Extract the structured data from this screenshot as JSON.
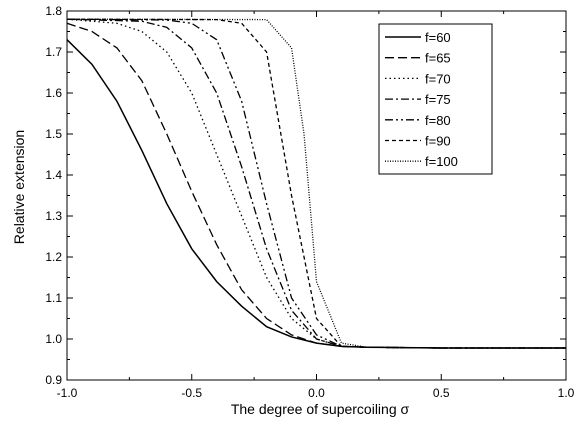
{
  "chart_data": {
    "type": "line",
    "xlabel": "The degree of supercoiling σ",
    "ylabel": "Relative extension",
    "xlim": [
      -1.0,
      1.0
    ],
    "ylim": [
      0.9,
      1.8
    ],
    "xticks": [
      -1.0,
      -0.5,
      0.0,
      0.5,
      1.0
    ],
    "xtick_labels": [
      "-1.0",
      "-0.5",
      "0.0",
      "0.5",
      "1.0"
    ],
    "yticks": [
      0.9,
      1.0,
      1.1,
      1.2,
      1.3,
      1.4,
      1.5,
      1.6,
      1.7,
      1.8
    ],
    "ytick_labels": [
      "0.9",
      "1.0",
      "1.1",
      "1.2",
      "1.3",
      "1.4",
      "1.5",
      "1.6",
      "1.7",
      "1.8"
    ],
    "grid": false,
    "legend_position": "top-right",
    "series": [
      {
        "name": "f=60",
        "dash": "solid",
        "x": [
          -1.0,
          -0.9,
          -0.8,
          -0.7,
          -0.6,
          -0.5,
          -0.4,
          -0.3,
          -0.2,
          -0.1,
          0.0,
          0.1,
          0.2,
          0.5,
          1.0
        ],
        "y": [
          1.73,
          1.67,
          1.58,
          1.46,
          1.33,
          1.22,
          1.14,
          1.08,
          1.03,
          1.005,
          0.99,
          0.982,
          0.98,
          0.978,
          0.978
        ]
      },
      {
        "name": "f=65",
        "dash": "dash",
        "x": [
          -1.0,
          -0.9,
          -0.8,
          -0.7,
          -0.6,
          -0.5,
          -0.4,
          -0.3,
          -0.2,
          -0.1,
          0.0,
          0.1,
          0.2,
          0.5,
          1.0
        ],
        "y": [
          1.77,
          1.75,
          1.71,
          1.63,
          1.5,
          1.36,
          1.23,
          1.12,
          1.05,
          1.01,
          0.99,
          0.982,
          0.98,
          0.978,
          0.978
        ]
      },
      {
        "name": "f=70",
        "dash": "dot",
        "x": [
          -1.0,
          -0.8,
          -0.7,
          -0.6,
          -0.5,
          -0.4,
          -0.3,
          -0.2,
          -0.1,
          0.0,
          0.1,
          0.2,
          0.5,
          1.0
        ],
        "y": [
          1.78,
          1.77,
          1.75,
          1.7,
          1.6,
          1.45,
          1.3,
          1.15,
          1.05,
          1.0,
          0.982,
          0.98,
          0.978,
          0.978
        ]
      },
      {
        "name": "f=75",
        "dash": "dashdot",
        "x": [
          -1.0,
          -0.7,
          -0.6,
          -0.5,
          -0.4,
          -0.3,
          -0.2,
          -0.1,
          0.0,
          0.1,
          0.2,
          0.5,
          1.0
        ],
        "y": [
          1.78,
          1.775,
          1.76,
          1.71,
          1.6,
          1.42,
          1.22,
          1.07,
          1.0,
          0.982,
          0.98,
          0.978,
          0.978
        ]
      },
      {
        "name": "f=80",
        "dash": "dashdotdot",
        "x": [
          -1.0,
          -0.6,
          -0.5,
          -0.4,
          -0.3,
          -0.2,
          -0.1,
          0.0,
          0.1,
          0.2,
          0.5,
          1.0
        ],
        "y": [
          1.78,
          1.778,
          1.77,
          1.73,
          1.58,
          1.33,
          1.1,
          1.01,
          0.982,
          0.98,
          0.978,
          0.978
        ]
      },
      {
        "name": "f=90",
        "dash": "shortdash",
        "x": [
          -1.0,
          -0.4,
          -0.3,
          -0.2,
          -0.1,
          0.0,
          0.1,
          0.2,
          0.5,
          1.0
        ],
        "y": [
          1.78,
          1.779,
          1.77,
          1.7,
          1.35,
          1.05,
          0.982,
          0.98,
          0.978,
          0.978
        ]
      },
      {
        "name": "f=100",
        "dash": "shortdot",
        "x": [
          -1.0,
          -0.2,
          -0.1,
          -0.05,
          0.0,
          0.1,
          0.2,
          0.5,
          1.0
        ],
        "y": [
          1.78,
          1.779,
          1.71,
          1.5,
          1.14,
          0.99,
          0.98,
          0.978,
          0.978
        ]
      }
    ]
  }
}
